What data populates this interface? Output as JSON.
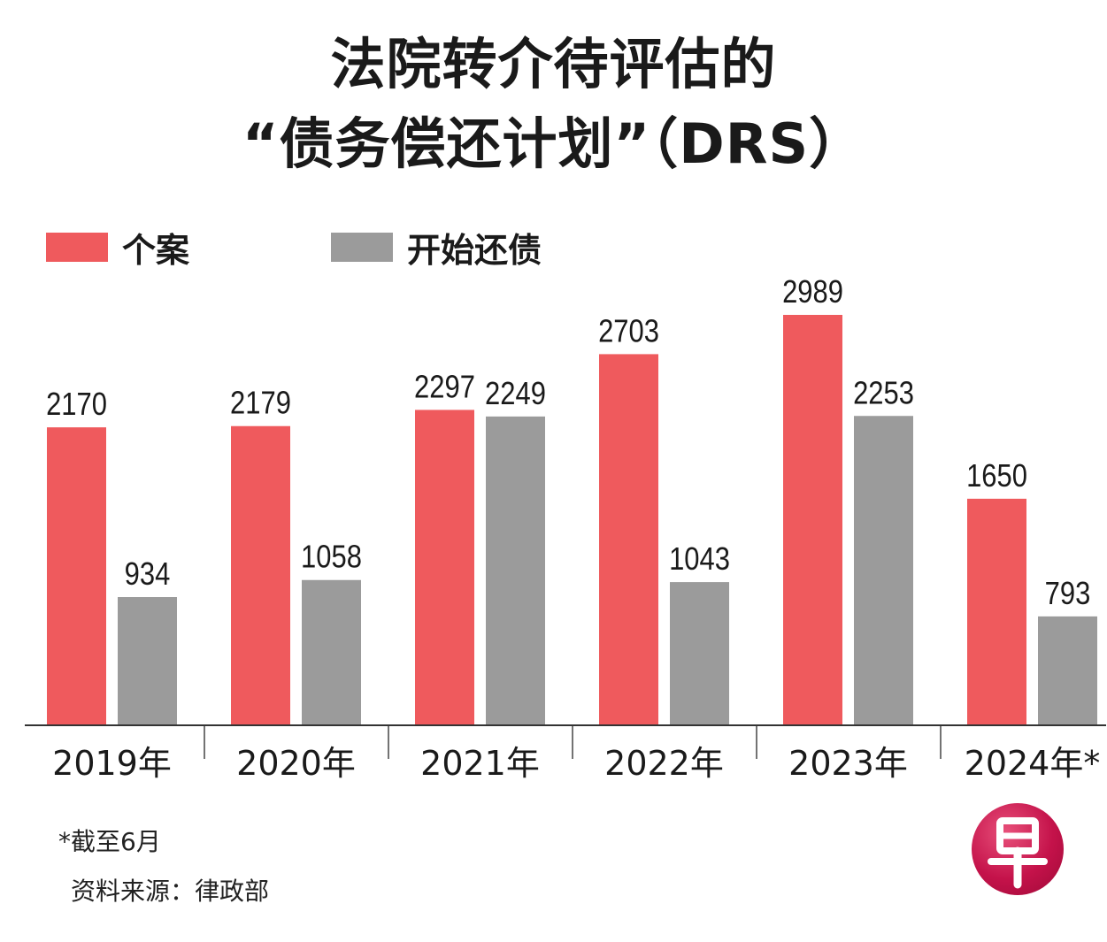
{
  "title_line1": "法院转介待评估的",
  "title_line2": "“债务偿还计划”（DRS）",
  "legend": [
    {
      "label": "个案",
      "color": "#ef5a5d"
    },
    {
      "label": "开始还债",
      "color": "#9b9b9b"
    }
  ],
  "footnote": "*截至6月",
  "source": "资料来源：律政部",
  "logo_text": "早",
  "chart_data": {
    "type": "bar",
    "title": "法院转介待评估的“债务偿还计划”（DRS）",
    "categories": [
      "2019年",
      "2020年",
      "2021年",
      "2022年",
      "2023年",
      "2024年*"
    ],
    "series": [
      {
        "name": "个案",
        "color": "#ef5a5d",
        "values": [
          2170,
          2179,
          2297,
          2703,
          2989,
          1650
        ]
      },
      {
        "name": "开始还债",
        "color": "#9b9b9b",
        "values": [
          934,
          1058,
          2249,
          1043,
          2253,
          793
        ]
      }
    ],
    "ylim": [
      0,
      3000
    ],
    "grid": false,
    "legend_position": "top-left",
    "data_labels": true
  }
}
